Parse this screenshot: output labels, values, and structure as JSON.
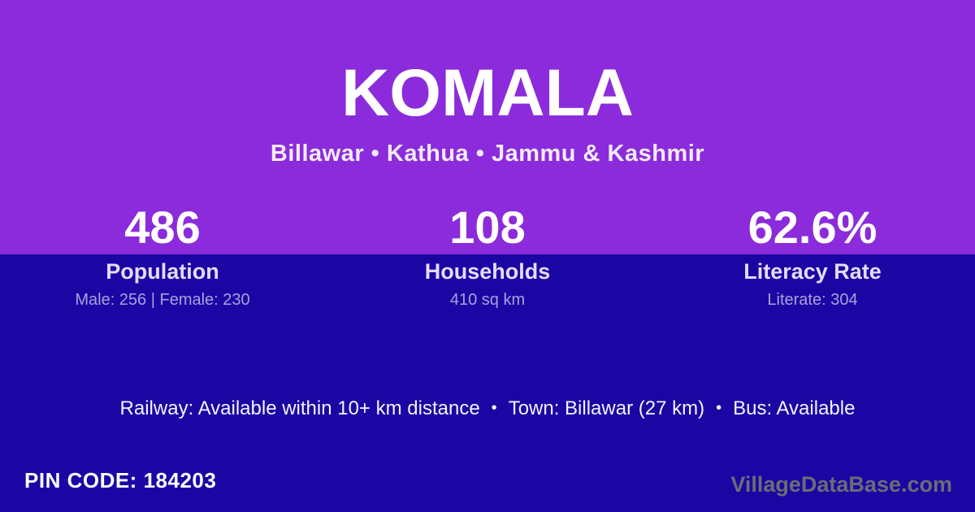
{
  "card": {
    "title": "KOMALA",
    "subtitle": "Billawar • Kathua • Jammu & Kashmir"
  },
  "stats": [
    {
      "value": "486",
      "label": "Population",
      "detail": "Male: 256 | Female: 230"
    },
    {
      "value": "108",
      "label": "Households",
      "detail": "410 sq km"
    },
    {
      "value": "62.6%",
      "label": "Literacy Rate",
      "detail": "Literate: 304"
    }
  ],
  "amenities": {
    "railway": "Railway: Available within 10+ km distance",
    "town": "Town: Billawar (27 km)",
    "bus": "Bus: Available",
    "separator": "•"
  },
  "footer": {
    "pin_label": "PIN CODE:",
    "pin_value": "184203",
    "watermark": "VillageDataBase.com"
  },
  "colors": {
    "header_purple": "#8B2BDB",
    "body_blue": "#1B06A4",
    "stat_label": "#E6DBF7",
    "stat_detail": "#ACA0DC",
    "watermark": "#6C6C75"
  }
}
